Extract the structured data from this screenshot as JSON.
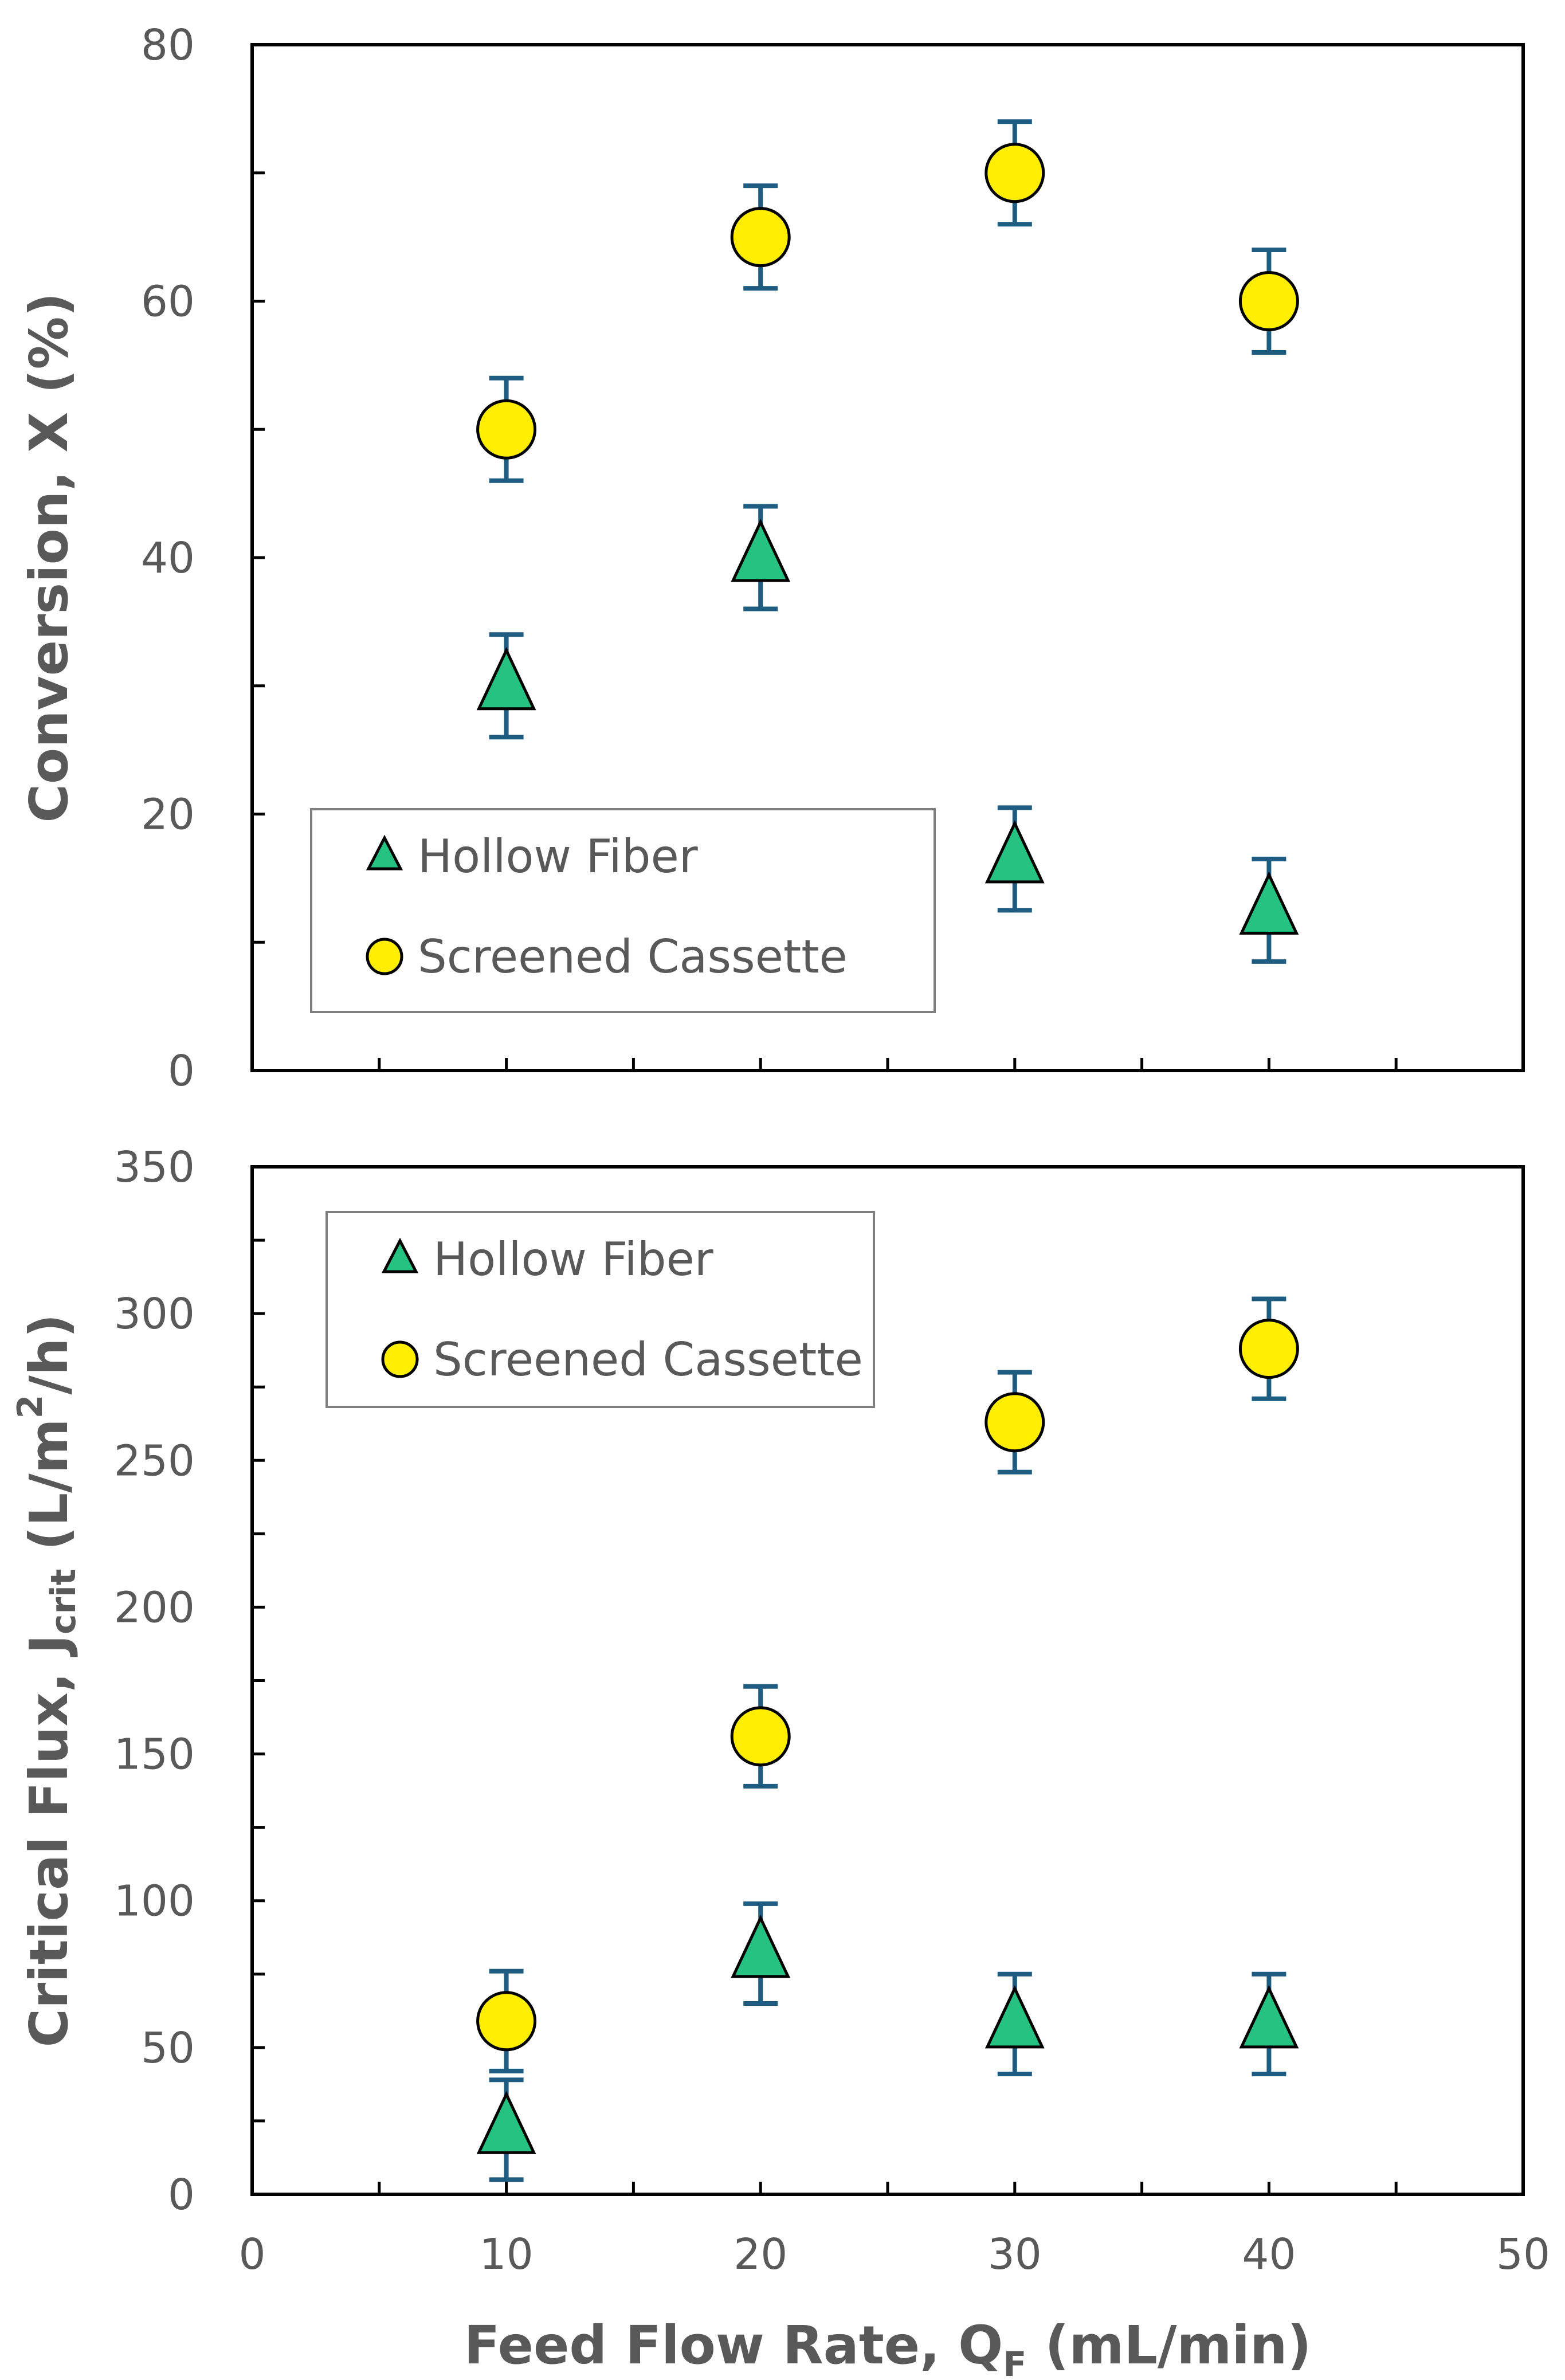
{
  "chart_data": [
    {
      "type": "scatter",
      "ylabel": "Conversion, X (%)",
      "ylim": [
        0,
        80
      ],
      "yticks": [
        0,
        20,
        40,
        60,
        80
      ],
      "xlim": [
        0,
        50
      ],
      "xticks": [
        0,
        10,
        20,
        30,
        40,
        50
      ],
      "show_xtick_labels": false,
      "grid": false,
      "legend": {
        "placement": "bottom-left",
        "entries": [
          "Hollow Fiber",
          "Screened Cassette"
        ]
      },
      "series": [
        {
          "name": "Hollow Fiber",
          "marker": "triangle",
          "color": "#26c281",
          "x": [
            10,
            20,
            30,
            40
          ],
          "y": [
            30,
            40,
            16.5,
            12.5
          ],
          "err": [
            4,
            4,
            4,
            4
          ]
        },
        {
          "name": "Screened Cassette",
          "marker": "circle",
          "color": "#ffee00",
          "x": [
            10,
            20,
            30,
            40
          ],
          "y": [
            50,
            65,
            70,
            60
          ],
          "err": [
            4,
            4,
            4,
            4
          ]
        }
      ]
    },
    {
      "type": "scatter",
      "ylabel": "Critical Flux, J",
      "ylabel_sub": "crit",
      "ylabel_tail1": " (L/m",
      "ylabel_sup": "2",
      "ylabel_tail2": "/h)",
      "xlabel": "Feed Flow Rate, Q",
      "xlabel_sub": "F",
      "xlabel_tail": " (mL/min)",
      "ylim": [
        0,
        350
      ],
      "yticks": [
        0,
        50,
        100,
        150,
        200,
        250,
        300,
        350
      ],
      "xlim": [
        0,
        50
      ],
      "xticks": [
        0,
        10,
        20,
        30,
        40,
        50
      ],
      "show_xtick_labels": true,
      "grid": false,
      "legend": {
        "placement": "top-left",
        "entries": [
          "Hollow Fiber",
          "Screened Cassette"
        ]
      },
      "series": [
        {
          "name": "Hollow Fiber",
          "marker": "triangle",
          "color": "#26c281",
          "x": [
            10,
            20,
            30,
            40
          ],
          "y": [
            22,
            82,
            58,
            58
          ],
          "err": [
            17,
            17,
            17,
            17
          ]
        },
        {
          "name": "Screened Cassette",
          "marker": "circle",
          "color": "#ffee00",
          "x": [
            10,
            20,
            30,
            40
          ],
          "y": [
            59,
            156,
            263,
            288
          ],
          "err": [
            17,
            17,
            17,
            17
          ]
        }
      ]
    }
  ],
  "style": {
    "error_bar_color": "#1f5c82",
    "marker_stroke": "#000000",
    "axis_color": "#000000",
    "text_color": "#595959"
  }
}
